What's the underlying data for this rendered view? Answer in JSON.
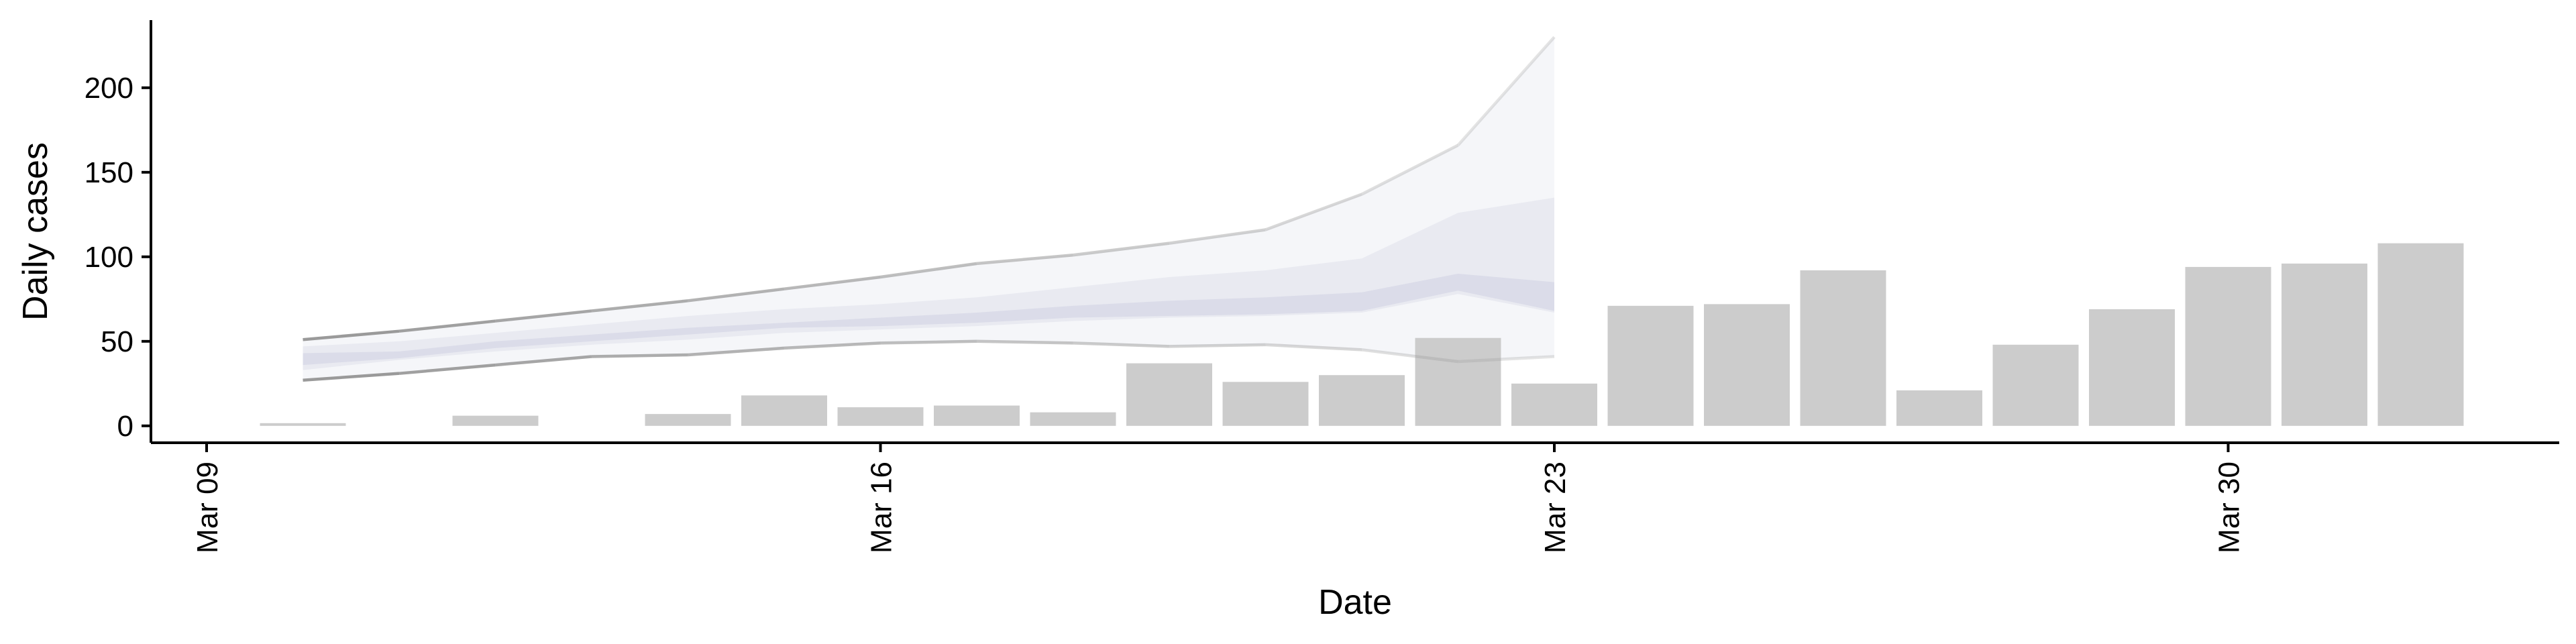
{
  "chart_data": {
    "type": "bar",
    "xlabel": "Date",
    "ylabel": "Daily cases",
    "x_ticks": [
      "Mar 09",
      "Mar 16",
      "Mar 23",
      "Mar 30"
    ],
    "y_ticks": [
      0,
      50,
      100,
      150,
      200
    ],
    "ylim": [
      -10,
      240
    ],
    "xlim": [
      "2020-03-09",
      "2020-04-03"
    ],
    "grid": false,
    "legend": "none",
    "bars": {
      "dates": [
        "2020-03-10",
        "2020-03-11",
        "2020-03-12",
        "2020-03-13",
        "2020-03-14",
        "2020-03-15",
        "2020-03-16",
        "2020-03-17",
        "2020-03-18",
        "2020-03-19",
        "2020-03-20",
        "2020-03-21",
        "2020-03-22",
        "2020-03-23",
        "2020-03-24",
        "2020-03-25",
        "2020-03-26",
        "2020-03-27",
        "2020-03-28",
        "2020-03-29",
        "2020-03-30",
        "2020-03-31",
        "2020-04-01"
      ],
      "values": [
        1,
        0,
        6,
        0,
        7,
        18,
        11,
        12,
        8,
        37,
        26,
        30,
        52,
        25,
        71,
        72,
        92,
        21,
        48,
        69,
        94,
        96,
        108
      ],
      "color": "#cccccc"
    },
    "forecast": {
      "dates": [
        "2020-03-10",
        "2020-03-11",
        "2020-03-12",
        "2020-03-13",
        "2020-03-14",
        "2020-03-15",
        "2020-03-16",
        "2020-03-17",
        "2020-03-18",
        "2020-03-19",
        "2020-03-20",
        "2020-03-21",
        "2020-03-22",
        "2020-03-23"
      ],
      "outer_lower": [
        27,
        31,
        36,
        41,
        42,
        46,
        49,
        50,
        49,
        47,
        48,
        45,
        38,
        41
      ],
      "outer_upper": [
        51,
        56,
        62,
        68,
        74,
        81,
        88,
        96,
        101,
        108,
        116,
        137,
        166,
        230
      ],
      "mid_lower": [
        33,
        39,
        44,
        48,
        51,
        55,
        57,
        59,
        62,
        64,
        65,
        67,
        78,
        67
      ],
      "mid_upper": [
        47,
        50,
        55,
        60,
        65,
        69,
        72,
        76,
        82,
        88,
        92,
        99,
        126,
        135
      ],
      "inner_lower": [
        36,
        40,
        46,
        50,
        54,
        58,
        59,
        61,
        64,
        65,
        66,
        68,
        80,
        68
      ],
      "inner_upper": [
        43,
        44,
        50,
        54,
        58,
        61,
        64,
        67,
        71,
        74,
        76,
        79,
        90,
        85
      ],
      "band_color": "#c9cde0",
      "line_color": "#9a9a9a"
    }
  }
}
